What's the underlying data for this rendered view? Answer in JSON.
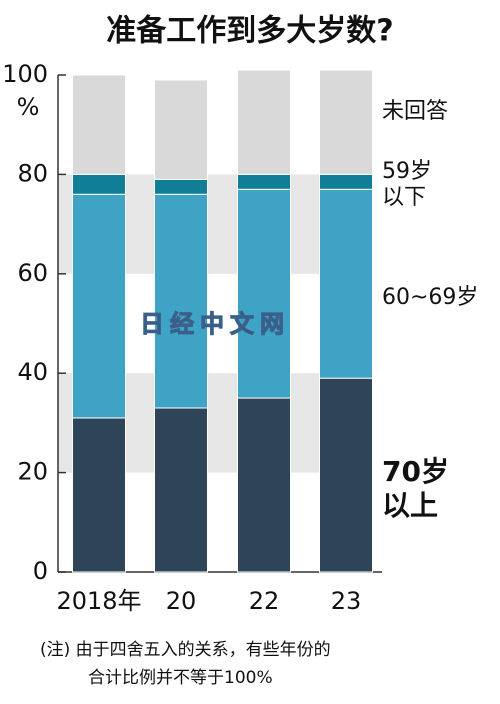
{
  "chart_data": {
    "type": "stacked_bar",
    "title": "准备工作到多大岁数?",
    "y_unit": "%",
    "categories": [
      "2018年",
      "20",
      "22",
      "23"
    ],
    "series": [
      {
        "name": "70岁\n以上",
        "color": "#2e4458",
        "values": [
          31,
          33,
          35,
          39
        ]
      },
      {
        "name": "60~69岁",
        "color": "#3ea3c4",
        "values": [
          45,
          43,
          42,
          38
        ]
      },
      {
        "name": "59岁\n以下",
        "color": "#117e97",
        "values": [
          4,
          3,
          3,
          3
        ]
      },
      {
        "name": "未回答",
        "color": "#d9d9d9",
        "values": [
          20,
          20,
          21,
          21
        ]
      }
    ],
    "ylim": [
      0,
      100
    ],
    "yticks": [
      0,
      20,
      40,
      60,
      80,
      100
    ],
    "watermark": "日经中文网",
    "note": [
      "(注) 由于四舍五入的关系，有些年份的",
      "合计比例并不等于100%"
    ]
  }
}
